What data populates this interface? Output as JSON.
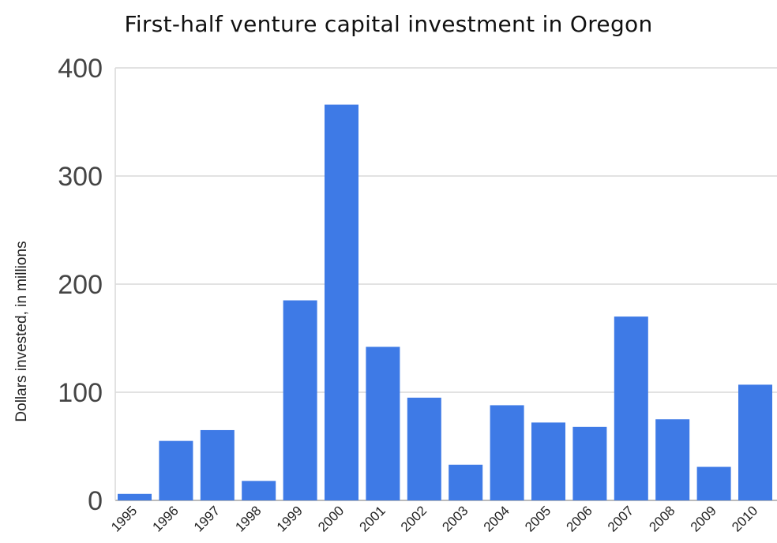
{
  "chart_data": {
    "type": "bar",
    "title": "First-half venture capital investment in Oregon",
    "xlabel": "",
    "ylabel": "Dollars invested, in millions",
    "categories": [
      "1995",
      "1996",
      "1997",
      "1998",
      "1999",
      "2000",
      "2001",
      "2002",
      "2003",
      "2004",
      "2005",
      "2006",
      "2007",
      "2008",
      "2009",
      "2010"
    ],
    "values": [
      6,
      55,
      65,
      18,
      185,
      366,
      142,
      95,
      33,
      88,
      72,
      68,
      170,
      75,
      31,
      107
    ],
    "ylim": [
      0,
      400
    ],
    "yticks": [
      "0",
      "100",
      "200",
      "300",
      "400"
    ],
    "grid": true,
    "legend": "none",
    "colors": {
      "bar": "#3e7ae6",
      "grid": "#d9d9d9",
      "axis": "#bbbbbb"
    }
  }
}
